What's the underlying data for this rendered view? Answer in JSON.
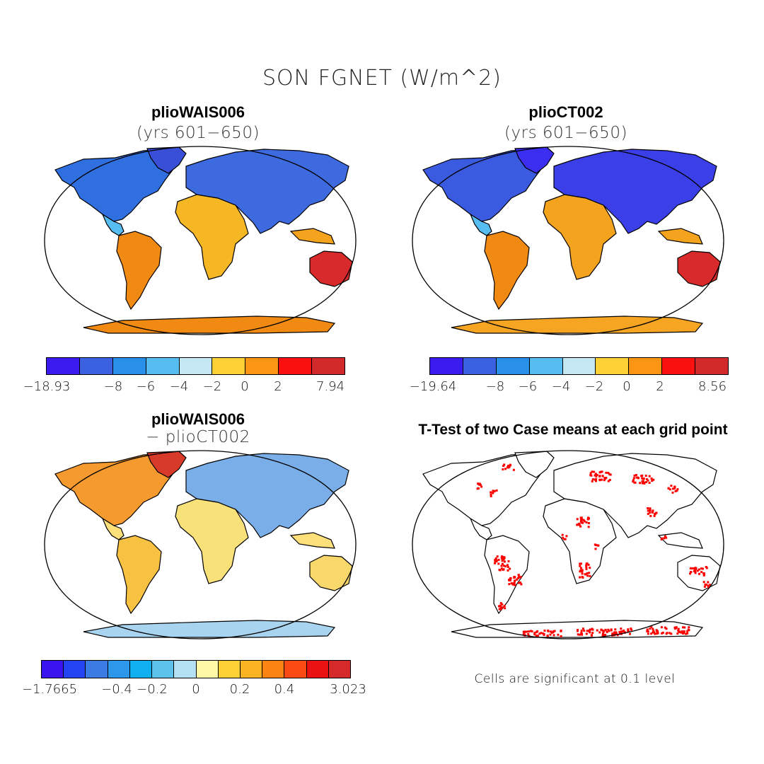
{
  "title": "SON FGNET (W/m^2)",
  "panels": [
    {
      "title": "plioWAIS006",
      "subtitle": "(yrs 601−650)",
      "colorbar": {
        "colors": [
          "#3b1cf0",
          "#3a62e0",
          "#2990ea",
          "#55bdf0",
          "#c6e8f5",
          "#fdd035",
          "#fa9614",
          "#fb1010",
          "#d2292a"
        ],
        "ticks": [
          "−18.93",
          "−8",
          "−6",
          "−4",
          "−2",
          "0",
          "2",
          "7.94"
        ]
      }
    },
    {
      "title": "plioCT002",
      "subtitle": "(yrs 601−650)",
      "colorbar": {
        "colors": [
          "#3b1cf0",
          "#3a62e0",
          "#2990ea",
          "#55bdf0",
          "#c6e8f5",
          "#fdd035",
          "#fa9614",
          "#fb1010",
          "#d2292a"
        ],
        "ticks": [
          "−19.64",
          "−8",
          "−6",
          "−4",
          "−2",
          "0",
          "2",
          "8.56"
        ]
      }
    },
    {
      "title": "plioWAIS006",
      "subtitle": "− plioCT002",
      "colorbar": {
        "colors": [
          "#3914ef",
          "#2443f2",
          "#3a7be4",
          "#2c97eb",
          "#10aff0",
          "#5cc2ec",
          "#b3e0f2",
          "#fff8a6",
          "#fdd035",
          "#fbb323",
          "#fa8311",
          "#fb4a13",
          "#ea1212",
          "#d52a2a"
        ],
        "ticks": [
          "−1.7665",
          "−0.4",
          "−0.2",
          "0",
          "0.2",
          "0.4",
          "3.023"
        ]
      }
    },
    {
      "title": "T-Test of two Case means at each grid point",
      "note": "Cells are significant at 0.1 level",
      "significant_color": "#ff0000"
    }
  ]
}
